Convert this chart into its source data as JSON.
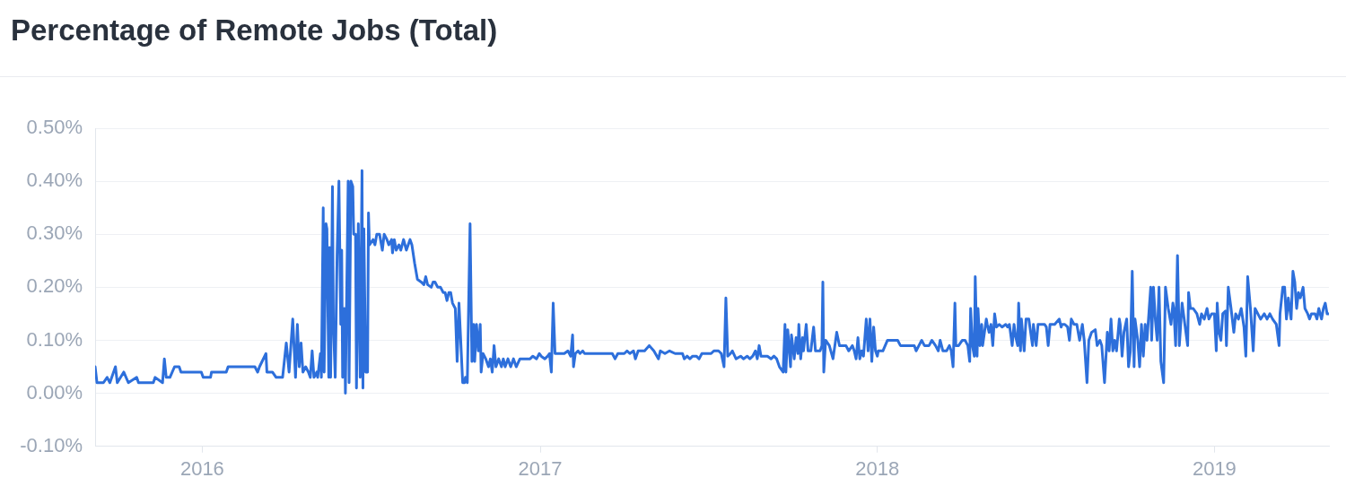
{
  "chart_data": {
    "type": "line",
    "title": "Percentage of Remote Jobs (Total)",
    "color": "#2d6fdb",
    "xlim": [
      "2015-09-07",
      "2019-05-05"
    ],
    "xticks": [
      "2016",
      "2017",
      "2018",
      "2019"
    ],
    "ylim": [
      -0.1,
      0.5
    ],
    "yticks": [
      {
        "value": -0.1,
        "label": "-0.10%"
      },
      {
        "value": 0,
        "label": "0.00%"
      },
      {
        "value": 0.1,
        "label": "0.10%"
      },
      {
        "value": 0.2,
        "label": "0.20%"
      },
      {
        "value": 0.3,
        "label": "0.30%"
      },
      {
        "value": 0.4,
        "label": "0.40%"
      },
      {
        "value": 0.5,
        "label": "0.50%"
      }
    ],
    "grid": "y",
    "x": [
      "2015-09-07",
      "2015-09-09",
      "2015-09-16",
      "2015-09-20",
      "2015-09-23",
      "2015-09-29",
      "2015-10-01",
      "2015-10-08",
      "2015-10-13",
      "2015-10-22",
      "2015-10-24",
      "2015-11-09",
      "2015-11-11",
      "2015-11-19",
      "2015-11-21",
      "2015-11-23",
      "2015-11-27",
      "2015-12-02",
      "2015-12-07",
      "2015-12-09",
      "2015-12-31",
      "2016-01-02",
      "2016-01-10",
      "2016-01-11",
      "2016-01-27",
      "2016-01-29",
      "2016-02-27",
      "2016-03-01",
      "2016-03-03",
      "2016-03-10",
      "2016-03-11",
      "2016-03-17",
      "2016-03-21",
      "2016-03-28",
      "2016-04-01",
      "2016-04-04",
      "2016-04-08",
      "2016-04-11",
      "2016-04-13",
      "2016-04-15",
      "2016-04-17",
      "2016-04-19",
      "2016-04-22",
      "2016-04-25",
      "2016-04-27",
      "2016-04-29",
      "2016-05-01",
      "2016-05-04",
      "2016-05-05",
      "2016-05-08",
      "2016-05-09",
      "2016-05-11",
      "2016-05-12",
      "2016-05-14",
      "2016-05-15",
      "2016-05-17",
      "2016-05-18",
      "2016-05-19",
      "2016-05-21",
      "2016-05-22",
      "2016-05-24",
      "2016-05-26",
      "2016-05-28",
      "2016-05-30",
      "2016-05-31",
      "2016-06-01",
      "2016-06-03",
      "2016-06-04",
      "2016-06-07",
      "2016-06-08",
      "2016-06-10",
      "2016-06-12",
      "2016-06-13",
      "2016-06-15",
      "2016-06-16",
      "2016-06-18",
      "2016-06-20",
      "2016-06-22",
      "2016-06-23",
      "2016-06-24",
      "2016-06-26",
      "2016-06-28",
      "2016-06-29",
      "2016-06-30",
      "2016-07-04",
      "2016-07-06",
      "2016-07-08",
      "2016-07-11",
      "2016-07-14",
      "2016-07-16",
      "2016-07-19",
      "2016-07-21",
      "2016-07-24",
      "2016-07-25",
      "2016-07-27",
      "2016-07-29",
      "2016-08-01",
      "2016-08-03",
      "2016-08-06",
      "2016-08-09",
      "2016-08-13",
      "2016-08-15",
      "2016-08-18",
      "2016-08-21",
      "2016-08-25",
      "2016-08-28",
      "2016-08-30",
      "2016-09-01",
      "2016-09-05",
      "2016-09-07",
      "2016-09-09",
      "2016-09-12",
      "2016-09-15",
      "2016-09-18",
      "2016-09-20",
      "2016-09-22",
      "2016-09-24",
      "2016-09-26",
      "2016-09-28",
      "2016-10-01",
      "2016-10-03",
      "2016-10-05",
      "2016-10-09",
      "2016-10-11",
      "2016-10-12",
      "2016-10-14",
      "2016-10-17",
      "2016-10-19",
      "2016-10-21",
      "2016-10-22",
      "2016-10-24",
      "2016-10-26",
      "2016-10-28",
      "2016-10-29",
      "2016-10-31",
      "2016-11-03",
      "2016-11-06",
      "2016-11-08",
      "2016-11-10",
      "2016-11-12",
      "2016-11-14",
      "2016-11-17",
      "2016-11-20",
      "2016-11-22",
      "2016-11-24",
      "2016-11-27",
      "2016-11-30",
      "2016-12-03",
      "2016-12-06",
      "2016-12-10",
      "2016-12-13",
      "2016-12-21",
      "2016-12-24",
      "2016-12-28",
      "2016-12-31",
      "2017-01-02",
      "2017-01-06",
      "2017-01-09",
      "2017-01-11",
      "2017-01-13",
      "2017-01-15",
      "2017-01-17",
      "2017-01-27",
      "2017-01-31",
      "2017-02-03",
      "2017-02-05",
      "2017-02-06",
      "2017-02-08",
      "2017-02-11",
      "2017-02-13",
      "2017-02-16",
      "2017-02-18",
      "2017-03-20",
      "2017-03-23",
      "2017-03-26",
      "2017-04-02",
      "2017-04-05",
      "2017-04-08",
      "2017-04-12",
      "2017-04-14",
      "2017-04-17",
      "2017-04-21",
      "2017-04-24",
      "2017-04-29",
      "2017-05-04",
      "2017-05-09",
      "2017-05-11",
      "2017-05-16",
      "2017-05-21",
      "2017-05-27",
      "2017-06-04",
      "2017-06-06",
      "2017-06-09",
      "2017-06-12",
      "2017-06-15",
      "2017-06-19",
      "2017-06-22",
      "2017-06-25",
      "2017-07-05",
      "2017-07-08",
      "2017-07-13",
      "2017-07-16",
      "2017-07-19",
      "2017-07-21",
      "2017-07-23",
      "2017-07-26",
      "2017-07-28",
      "2017-08-01",
      "2017-08-06",
      "2017-08-09",
      "2017-08-13",
      "2017-08-16",
      "2017-08-19",
      "2017-08-22",
      "2017-08-24",
      "2017-08-26",
      "2017-08-28",
      "2017-09-04",
      "2017-09-08",
      "2017-09-11",
      "2017-09-14",
      "2017-09-17",
      "2017-09-21",
      "2017-09-23",
      "2017-09-24",
      "2017-09-26",
      "2017-09-29",
      "2017-09-30",
      "2017-10-03",
      "2017-10-05",
      "2017-10-07",
      "2017-10-08",
      "2017-10-10",
      "2017-10-12",
      "2017-10-13",
      "2017-10-16",
      "2017-10-18",
      "2017-10-21",
      "2017-10-24",
      "2017-10-26",
      "2017-10-31",
      "2017-11-02",
      "2017-11-03",
      "2017-11-04",
      "2017-11-06",
      "2017-11-10",
      "2017-11-14",
      "2017-11-18",
      "2017-11-21",
      "2017-11-28",
      "2017-12-01",
      "2017-12-05",
      "2017-12-07",
      "2017-12-09",
      "2017-12-11",
      "2017-12-13",
      "2017-12-15",
      "2017-12-17",
      "2017-12-20",
      "2017-12-22",
      "2017-12-24",
      "2017-12-26",
      "2017-12-28",
      "2017-12-30",
      "2018-01-01",
      "2018-01-02",
      "2018-01-07",
      "2018-01-12",
      "2018-01-18",
      "2018-01-23",
      "2018-01-26",
      "2018-01-31",
      "2018-02-10",
      "2018-02-12",
      "2018-02-15",
      "2018-02-18",
      "2018-02-21",
      "2018-02-26",
      "2018-03-01",
      "2018-03-05",
      "2018-03-08",
      "2018-03-10",
      "2018-03-13",
      "2018-03-17",
      "2018-03-20",
      "2018-03-22",
      "2018-03-24",
      "2018-03-26",
      "2018-03-27",
      "2018-03-30",
      "2018-04-03",
      "2018-04-06",
      "2018-04-09",
      "2018-04-11",
      "2018-04-12",
      "2018-04-14",
      "2018-04-16",
      "2018-04-17",
      "2018-04-19",
      "2018-04-20",
      "2018-04-22",
      "2018-04-24",
      "2018-04-25",
      "2018-04-27",
      "2018-04-29",
      "2018-04-30",
      "2018-05-02",
      "2018-05-04",
      "2018-05-06",
      "2018-05-08",
      "2018-05-10",
      "2018-05-13",
      "2018-05-16",
      "2018-05-20",
      "2018-05-22",
      "2018-05-24",
      "2018-05-27",
      "2018-05-29",
      "2018-05-31",
      "2018-06-02",
      "2018-06-03",
      "2018-06-05",
      "2018-06-06",
      "2018-06-09",
      "2018-06-11",
      "2018-06-14",
      "2018-06-18",
      "2018-06-19",
      "2018-06-22",
      "2018-06-24",
      "2018-06-27",
      "2018-07-01",
      "2018-07-03",
      "2018-07-05",
      "2018-07-07",
      "2018-07-12",
      "2018-07-17",
      "2018-07-19",
      "2018-07-20",
      "2018-07-23",
      "2018-07-26",
      "2018-07-28",
      "2018-07-30",
      "2018-08-02",
      "2018-08-05",
      "2018-08-08",
      "2018-08-11",
      "2018-08-13",
      "2018-08-16",
      "2018-08-18",
      "2018-08-21",
      "2018-08-25",
      "2018-08-27",
      "2018-08-30",
      "2018-09-01",
      "2018-09-04",
      "2018-09-07",
      "2018-09-09",
      "2018-09-11",
      "2018-09-13",
      "2018-09-15",
      "2018-09-17",
      "2018-09-20",
      "2018-09-21",
      "2018-09-23",
      "2018-09-25",
      "2018-09-28",
      "2018-09-30",
      "2018-10-02",
      "2018-10-04",
      "2018-10-06",
      "2018-10-07",
      "2018-10-10",
      "2018-10-12",
      "2018-10-14",
      "2018-10-16",
      "2018-10-18",
      "2018-10-20",
      "2018-10-22",
      "2018-10-24",
      "2018-10-25",
      "2018-10-27",
      "2018-10-29",
      "2018-10-31",
      "2018-11-02",
      "2018-11-04",
      "2018-11-07",
      "2018-11-09",
      "2018-11-12",
      "2018-11-15",
      "2018-11-17",
      "2018-11-18",
      "2018-11-20",
      "2018-11-22",
      "2018-11-24",
      "2018-11-27",
      "2018-11-30",
      "2018-12-03",
      "2018-12-04",
      "2018-12-06",
      "2018-12-09",
      "2018-12-13",
      "2018-12-16",
      "2018-12-18",
      "2018-12-21",
      "2018-12-24",
      "2018-12-26",
      "2018-12-29",
      "2019-01-01",
      "2019-01-03",
      "2019-01-04",
      "2019-01-06",
      "2019-01-08",
      "2019-01-10",
      "2019-01-13",
      "2019-01-14",
      "2019-01-16",
      "2019-01-19",
      "2019-01-22",
      "2019-01-24",
      "2019-01-27",
      "2019-01-30",
      "2019-02-02",
      "2019-02-04",
      "2019-02-06",
      "2019-02-09",
      "2019-02-12",
      "2019-02-14",
      "2019-02-17",
      "2019-02-20",
      "2019-02-24",
      "2019-02-27",
      "2019-03-02",
      "2019-03-05",
      "2019-03-09",
      "2019-03-12",
      "2019-03-13",
      "2019-03-16",
      "2019-03-18",
      "2019-03-20",
      "2019-03-22",
      "2019-03-25",
      "2019-03-27",
      "2019-03-29",
      "2019-03-31",
      "2019-04-02",
      "2019-04-04",
      "2019-04-07",
      "2019-04-09",
      "2019-04-12",
      "2019-04-14",
      "2019-04-16",
      "2019-04-20",
      "2019-04-22",
      "2019-04-24",
      "2019-04-27",
      "2019-04-29",
      "2019-05-01",
      "2019-05-03",
      "2019-05-05"
    ],
    "values": [
      0.05,
      0.02,
      0.02,
      0.03,
      0.02,
      0.05,
      0.02,
      0.04,
      0.02,
      0.03,
      0.02,
      0.02,
      0.03,
      0.02,
      0.065,
      0.03,
      0.03,
      0.05,
      0.05,
      0.04,
      0.04,
      0.03,
      0.03,
      0.04,
      0.04,
      0.05,
      0.05,
      0.04,
      0.05,
      0.075,
      0.04,
      0.04,
      0.03,
      0.03,
      0.095,
      0.04,
      0.14,
      0.03,
      0.13,
      0.05,
      0.095,
      0.04,
      0.05,
      0.04,
      0.03,
      0.08,
      0.03,
      0.04,
      0.03,
      0.075,
      0.03,
      0.35,
      0.04,
      0.32,
      0.31,
      0.03,
      0.275,
      0.03,
      0.39,
      0.13,
      0.03,
      0.26,
      0.4,
      0.13,
      0.27,
      0.03,
      0.16,
      0.0,
      0.4,
      0.02,
      0.4,
      0.39,
      0.3,
      0.3,
      0.01,
      0.32,
      0.03,
      0.42,
      0.01,
      0.31,
      0.04,
      0.04,
      0.34,
      0.28,
      0.29,
      0.28,
      0.3,
      0.3,
      0.27,
      0.3,
      0.29,
      0.28,
      0.29,
      0.265,
      0.29,
      0.27,
      0.28,
      0.27,
      0.29,
      0.27,
      0.29,
      0.28,
      0.245,
      0.215,
      0.21,
      0.205,
      0.22,
      0.205,
      0.2,
      0.21,
      0.21,
      0.2,
      0.2,
      0.19,
      0.19,
      0.175,
      0.19,
      0.19,
      0.17,
      0.16,
      0.06,
      0.17,
      0.02,
      0.02,
      0.03,
      0.02,
      0.32,
      0.06,
      0.13,
      0.06,
      0.13,
      0.08,
      0.13,
      0.04,
      0.075,
      0.065,
      0.05,
      0.065,
      0.04,
      0.09,
      0.05,
      0.065,
      0.05,
      0.065,
      0.05,
      0.065,
      0.05,
      0.065,
      0.05,
      0.065,
      0.065,
      0.065,
      0.07,
      0.065,
      0.075,
      0.07,
      0.065,
      0.07,
      0.075,
      0.04,
      0.17,
      0.075,
      0.075,
      0.08,
      0.07,
      0.11,
      0.05,
      0.075,
      0.08,
      0.075,
      0.08,
      0.075,
      0.075,
      0.065,
      0.075,
      0.075,
      0.08,
      0.075,
      0.08,
      0.065,
      0.08,
      0.08,
      0.08,
      0.09,
      0.08,
      0.065,
      0.08,
      0.075,
      0.08,
      0.075,
      0.075,
      0.065,
      0.07,
      0.065,
      0.07,
      0.07,
      0.065,
      0.075,
      0.075,
      0.08,
      0.08,
      0.075,
      0.05,
      0.18,
      0.07,
      0.075,
      0.08,
      0.065,
      0.07,
      0.065,
      0.07,
      0.065,
      0.07,
      0.08,
      0.065,
      0.09,
      0.07,
      0.07,
      0.065,
      0.07,
      0.065,
      0.05,
      0.04,
      0.13,
      0.04,
      0.12,
      0.05,
      0.11,
      0.065,
      0.105,
      0.075,
      0.13,
      0.065,
      0.105,
      0.08,
      0.13,
      0.08,
      0.08,
      0.125,
      0.08,
      0.08,
      0.09,
      0.21,
      0.04,
      0.1,
      0.09,
      0.065,
      0.115,
      0.09,
      0.09,
      0.08,
      0.09,
      0.08,
      0.065,
      0.105,
      0.065,
      0.08,
      0.07,
      0.14,
      0.08,
      0.14,
      0.06,
      0.125,
      0.08,
      0.07,
      0.08,
      0.08,
      0.1,
      0.1,
      0.1,
      0.09,
      0.09,
      0.09,
      0.08,
      0.09,
      0.1,
      0.09,
      0.09,
      0.1,
      0.09,
      0.08,
      0.1,
      0.08,
      0.08,
      0.09,
      0.08,
      0.05,
      0.17,
      0.09,
      0.09,
      0.1,
      0.1,
      0.09,
      0.06,
      0.16,
      0.09,
      0.07,
      0.22,
      0.07,
      0.16,
      0.09,
      0.13,
      0.09,
      0.115,
      0.14,
      0.13,
      0.115,
      0.13,
      0.09,
      0.15,
      0.125,
      0.13,
      0.125,
      0.13,
      0.125,
      0.13,
      0.09,
      0.13,
      0.105,
      0.09,
      0.17,
      0.08,
      0.14,
      0.08,
      0.14,
      0.14,
      0.09,
      0.13,
      0.09,
      0.13,
      0.13,
      0.13,
      0.125,
      0.09,
      0.13,
      0.13,
      0.14,
      0.125,
      0.13,
      0.13,
      0.125,
      0.1,
      0.14,
      0.13,
      0.13,
      0.1,
      0.13,
      0.1,
      0.02,
      0.1,
      0.115,
      0.12,
      0.09,
      0.1,
      0.09,
      0.02,
      0.115,
      0.08,
      0.14,
      0.08,
      0.1,
      0.08,
      0.14,
      0.13,
      0.07,
      0.115,
      0.14,
      0.05,
      0.08,
      0.23,
      0.05,
      0.14,
      0.1,
      0.05,
      0.13,
      0.07,
      0.13,
      0.1,
      0.15,
      0.2,
      0.1,
      0.2,
      0.14,
      0.1,
      0.2,
      0.06,
      0.02,
      0.2,
      0.16,
      0.13,
      0.17,
      0.16,
      0.09,
      0.26,
      0.09,
      0.17,
      0.13,
      0.09,
      0.19,
      0.16,
      0.16,
      0.15,
      0.13,
      0.15,
      0.14,
      0.16,
      0.14,
      0.15,
      0.15,
      0.08,
      0.17,
      0.115,
      0.1,
      0.15,
      0.155,
      0.09,
      0.2,
      0.16,
      0.115,
      0.15,
      0.14,
      0.16,
      0.125,
      0.07,
      0.22,
      0.16,
      0.08,
      0.16,
      0.15,
      0.14,
      0.15,
      0.14,
      0.15,
      0.14,
      0.13,
      0.09,
      0.15,
      0.2,
      0.2,
      0.14,
      0.18,
      0.14,
      0.23,
      0.21,
      0.16,
      0.19,
      0.18,
      0.2,
      0.16,
      0.15,
      0.14,
      0.15,
      0.15,
      0.14,
      0.16,
      0.14,
      0.16,
      0.17,
      0.15,
      0.15
    ]
  }
}
